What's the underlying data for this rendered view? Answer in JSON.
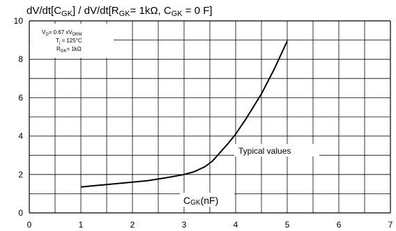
{
  "chart_data": {
    "type": "line",
    "title": "dV/dt[C_GK] / dV/dt[R_GK= 1kΩ, C_GK = 0 F]",
    "title_parts": {
      "p1": "dV/dt[C",
      "p2": "GK",
      "p3": "] / dV/dt[R",
      "p4": "GK",
      "p5": "= 1kΩ, C",
      "p6": "GK",
      "p7": " = 0 F]"
    },
    "xlabel": "C_GK(nF)",
    "xlabel_parts": {
      "p1": "C",
      "p2": "GK",
      "p3": "(nF)"
    },
    "ylabel": "",
    "xlim": [
      0,
      7
    ],
    "ylim": [
      0,
      10
    ],
    "x_ticks": [
      0,
      1,
      2,
      3,
      4,
      5,
      6,
      7
    ],
    "x_tick_labels": [
      "0",
      "1",
      "2",
      "3",
      "4",
      "5",
      "6",
      "7"
    ],
    "y_ticks": [
      0,
      2,
      4,
      6,
      8,
      10
    ],
    "y_tick_labels": [
      "0",
      "2",
      "4",
      "6",
      "8",
      "10"
    ],
    "grid": true,
    "legend_box": {
      "line1": "V_D= 0.67 xV_DRM",
      "line2": "T_j = 125°C",
      "line3": "R_GK= 1kΩ",
      "line1_parts": {
        "p1": "V",
        "p2": "D",
        "p3": "= 0.67 xV",
        "p4": "DRM"
      },
      "line2_parts": {
        "p1": "T",
        "p2": "j",
        "p3": " = 125°C"
      },
      "line3_parts": {
        "p1": "R",
        "p2": "GK",
        "p3": "= 1kΩ"
      }
    },
    "annotation": "Typical values",
    "series": [
      {
        "color": "#000000",
        "x": [
          1.0,
          1.5,
          2.0,
          2.3,
          2.7,
          3.0,
          3.2,
          3.4,
          3.55,
          3.7,
          3.85,
          4.0,
          4.2,
          4.5,
          4.75,
          5.0
        ],
        "y": [
          1.35,
          1.48,
          1.6,
          1.68,
          1.85,
          2.0,
          2.15,
          2.4,
          2.7,
          3.15,
          3.6,
          4.1,
          4.9,
          6.2,
          7.5,
          8.95
        ]
      }
    ]
  }
}
